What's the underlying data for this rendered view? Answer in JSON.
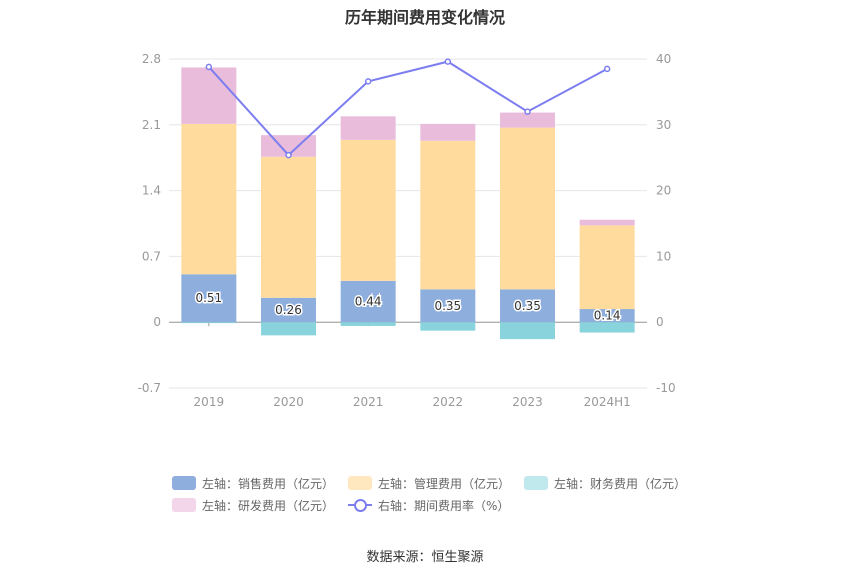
{
  "title": "历年期间费用变化情况",
  "source": "数据来源：恒生聚源",
  "chart_data": {
    "type": "bar",
    "stacked": true,
    "categories": [
      "2019",
      "2020",
      "2021",
      "2022",
      "2023",
      "2024H1"
    ],
    "left_axis": {
      "ticks": [
        "2.8",
        "2.1",
        "1.4",
        "0.7",
        "0",
        "-0.7"
      ],
      "ylim": [
        -0.7,
        2.8
      ]
    },
    "right_axis": {
      "ticks": [
        "40",
        "30",
        "20",
        "10",
        "0",
        "-10"
      ],
      "ylim": [
        -10,
        40
      ]
    },
    "grid": true,
    "legend_position": "bottom",
    "series": [
      {
        "name": "左轴：销售费用（亿元）",
        "axis": "left",
        "kind": "bar",
        "color": "#8eaedd",
        "values": [
          0.51,
          0.26,
          0.44,
          0.35,
          0.35,
          0.14
        ],
        "labels": [
          "0.51",
          "0.26",
          "0.44",
          "0.35",
          "0.35",
          "0.14"
        ]
      },
      {
        "name": "左轴：管理费用（亿元）",
        "axis": "left",
        "kind": "bar",
        "color": "#ffdc9e",
        "values": [
          1.6,
          1.5,
          1.5,
          1.58,
          1.72,
          0.89
        ]
      },
      {
        "name": "左轴：财务费用（亿元）",
        "axis": "left",
        "kind": "bar",
        "color": "#89d4dc",
        "values": [
          -0.01,
          -0.14,
          -0.04,
          -0.09,
          -0.18,
          -0.11
        ]
      },
      {
        "name": "左轴：研发费用（亿元）",
        "axis": "left",
        "kind": "bar",
        "color": "#e9bcdc",
        "values": [
          0.6,
          0.23,
          0.25,
          0.18,
          0.16,
          0.06
        ]
      },
      {
        "name": "右轴：期间费用率（%）",
        "axis": "right",
        "kind": "line",
        "color": "#7c7ef0",
        "values": [
          38.8,
          25.4,
          36.6,
          39.6,
          32.0,
          38.5
        ]
      }
    ]
  }
}
